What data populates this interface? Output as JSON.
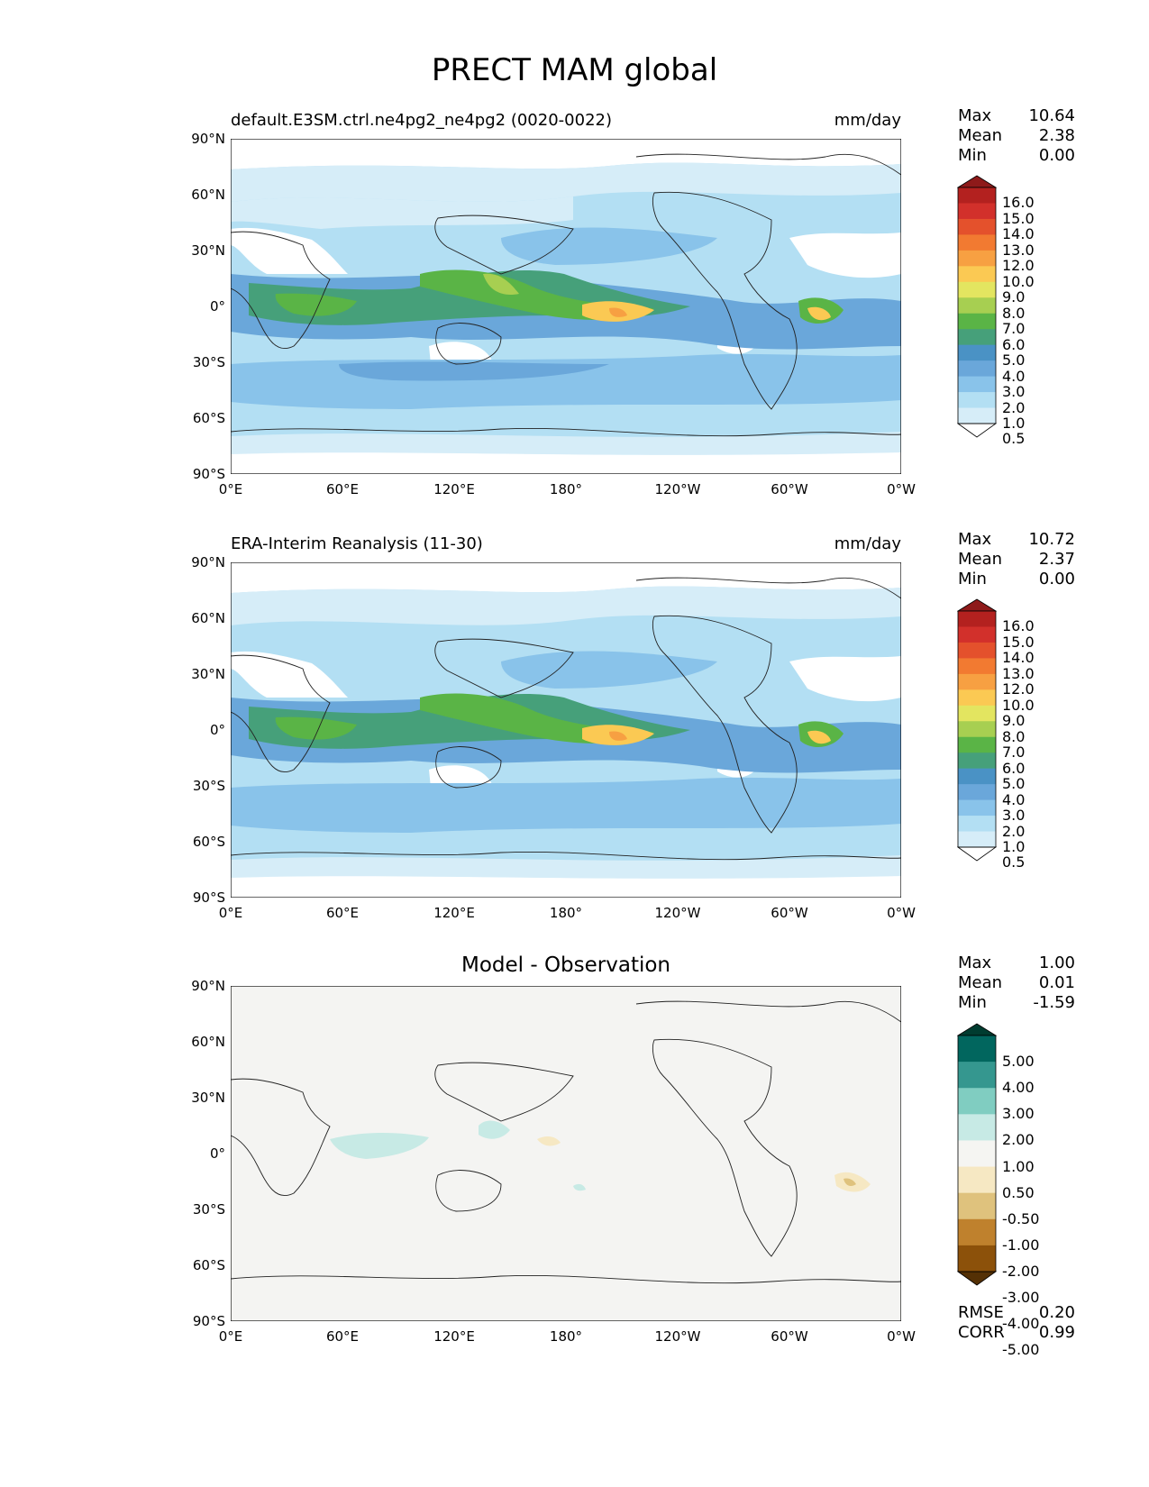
{
  "title": "PRECT MAM global",
  "colors": {
    "prect_levels": [
      "#ffffff",
      "#d6edf8",
      "#b3dff3",
      "#89c3ea",
      "#6aa7da",
      "#4a92c5",
      "#46a07a",
      "#5ab446",
      "#a7cf51",
      "#e3e560",
      "#fbc953",
      "#f7a042",
      "#f27a31",
      "#e4512c",
      "#d2302b",
      "#b3211f",
      "#8e1a1a"
    ],
    "diff_levels": [
      "#543005",
      "#8c510a",
      "#bf812d",
      "#dfc27d",
      "#f6e8c3",
      "#f5f5f2",
      "#c7eae5",
      "#80cdc1",
      "#35978f",
      "#01665e",
      "#003c30"
    ],
    "background_diff": "#f4f4f2"
  },
  "icons": [
    "colorbar-triangle-icon"
  ],
  "panels": [
    {
      "left_title": "default.E3SM.ctrl.ne4pg2_ne4pg2 (0020-0022)",
      "right_title": "mm/day",
      "center_title": "",
      "stats": [
        {
          "label": "Max",
          "value": "10.64"
        },
        {
          "label": "Mean",
          "value": "2.38"
        },
        {
          "label": "Min",
          "value": "0.00"
        }
      ],
      "colorbar": {
        "labels": [
          "16.0",
          "15.0",
          "14.0",
          "13.0",
          "12.0",
          "10.0",
          "9.0",
          "8.0",
          "7.0",
          "6.0",
          "5.0",
          "4.0",
          "3.0",
          "2.0",
          "1.0",
          "0.5"
        ]
      }
    },
    {
      "left_title": "ERA-Interim Reanalysis (11-30)",
      "right_title": "mm/day",
      "center_title": "",
      "stats": [
        {
          "label": "Max",
          "value": "10.72"
        },
        {
          "label": "Mean",
          "value": "2.37"
        },
        {
          "label": "Min",
          "value": "0.00"
        }
      ],
      "colorbar": {
        "labels": [
          "16.0",
          "15.0",
          "14.0",
          "13.0",
          "12.0",
          "10.0",
          "9.0",
          "8.0",
          "7.0",
          "6.0",
          "5.0",
          "4.0",
          "3.0",
          "2.0",
          "1.0",
          "0.5"
        ]
      }
    },
    {
      "left_title": "",
      "right_title": "",
      "center_title": "Model - Observation",
      "stats": [
        {
          "label": "Max",
          "value": "1.00"
        },
        {
          "label": "Mean",
          "value": "0.01"
        },
        {
          "label": "Min",
          "value": "-1.59"
        }
      ],
      "colorbar": {
        "labels": [
          "5.00",
          "4.00",
          "3.00",
          "2.00",
          "1.00",
          "0.50",
          "-0.50",
          "-1.00",
          "-2.00",
          "-3.00",
          "-4.00",
          "-5.00"
        ]
      },
      "metrics": [
        {
          "label": "RMSE",
          "value": "0.20"
        },
        {
          "label": "CORR",
          "value": "0.99"
        }
      ]
    }
  ],
  "axes": {
    "lat_ticks": [
      "90°N",
      "60°N",
      "30°N",
      "0°",
      "30°S",
      "60°S",
      "90°S"
    ],
    "lon_ticks": [
      "0°E",
      "60°E",
      "120°E",
      "180°",
      "120°W",
      "60°W",
      "0°W"
    ]
  }
}
